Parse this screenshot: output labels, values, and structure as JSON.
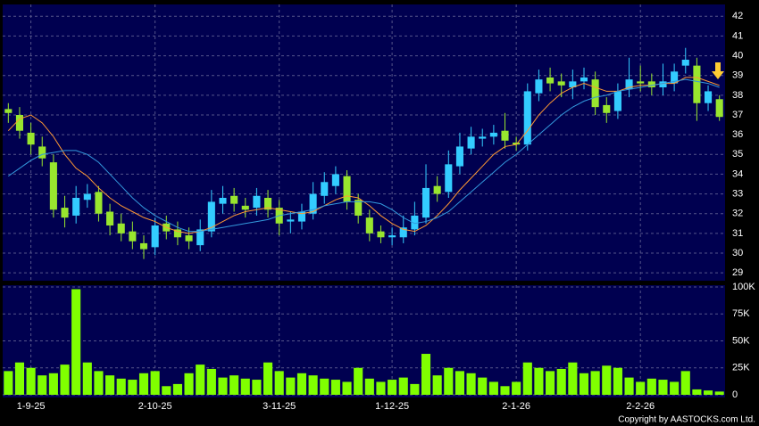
{
  "chart_data": [
    {
      "type": "candlestick",
      "up_color": "#33ccff",
      "down_color": "#99e62e",
      "open": [
        37.3,
        37.0,
        36.1,
        35.4,
        34.6,
        32.3,
        31.9,
        32.7,
        33.1,
        32.1,
        31.5,
        31.1,
        30.5,
        30.3,
        31.5,
        31.2,
        30.9,
        30.4,
        31.1,
        32.5,
        32.9,
        32.4,
        32.3,
        32.8,
        32.3,
        31.6,
        31.6,
        32.0,
        32.9,
        33.4,
        33.9,
        32.7,
        31.8,
        31.1,
        30.8,
        30.8,
        31.2,
        31.8,
        33.4,
        33.1,
        34.4,
        35.3,
        35.8,
        35.9,
        36.2,
        35.6,
        35.5,
        38.1,
        38.9,
        38.7,
        38.4,
        38.7,
        38.8,
        37.5,
        37.2,
        38.3,
        38.7,
        38.7,
        38.4,
        38.6,
        39.5,
        39.5,
        37.6,
        37.8
      ],
      "high": [
        37.6,
        37.4,
        36.6,
        35.9,
        35.0,
        32.9,
        33.4,
        33.5,
        33.4,
        32.5,
        32.0,
        31.6,
        30.9,
        31.8,
        31.9,
        31.6,
        31.3,
        31.7,
        33.2,
        33.4,
        33.3,
        32.8,
        33.3,
        33.2,
        32.7,
        32.1,
        32.5,
        33.6,
        34.1,
        34.4,
        34.2,
        33.0,
        32.2,
        31.4,
        31.3,
        31.9,
        32.6,
        34.5,
        33.9,
        35.2,
        36.1,
        36.4,
        36.3,
        36.5,
        37.1,
        35.9,
        38.6,
        39.3,
        39.4,
        39.1,
        39.3,
        39.4,
        39.2,
        37.9,
        38.6,
        39.9,
        39.5,
        39.1,
        39.6,
        39.6,
        40.4,
        39.9,
        38.5,
        38.0
      ],
      "low": [
        36.6,
        35.8,
        35.0,
        34.4,
        31.8,
        31.3,
        31.5,
        32.3,
        31.6,
        30.9,
        30.6,
        30.2,
        29.7,
        29.9,
        30.7,
        30.4,
        30.2,
        30.1,
        30.8,
        32.0,
        32.1,
        31.8,
        31.9,
        31.8,
        30.9,
        31.0,
        31.2,
        31.7,
        32.5,
        33.0,
        32.2,
        31.5,
        30.6,
        30.5,
        30.4,
        30.5,
        30.9,
        31.5,
        32.6,
        32.8,
        34.0,
        35.0,
        35.4,
        35.5,
        35.3,
        35.2,
        35.2,
        37.7,
        38.2,
        37.9,
        37.8,
        38.3,
        37.0,
        36.6,
        36.8,
        37.9,
        38.2,
        38.0,
        38.0,
        38.2,
        39.1,
        36.7,
        37.2,
        36.7
      ],
      "close": [
        37.1,
        36.2,
        35.5,
        34.8,
        32.2,
        31.8,
        32.8,
        33.0,
        32.0,
        31.4,
        31.0,
        30.6,
        30.2,
        31.4,
        31.1,
        30.8,
        30.6,
        31.2,
        32.6,
        32.8,
        32.5,
        32.2,
        32.9,
        32.2,
        31.5,
        31.7,
        32.1,
        33.0,
        33.6,
        34.0,
        32.6,
        31.9,
        31.0,
        30.8,
        30.9,
        31.3,
        31.9,
        33.3,
        33.0,
        34.5,
        35.4,
        35.9,
        35.9,
        36.1,
        35.7,
        35.5,
        38.2,
        38.8,
        38.6,
        38.5,
        38.7,
        38.9,
        37.4,
        37.1,
        38.2,
        38.8,
        38.6,
        38.4,
        38.7,
        39.2,
        39.8,
        37.6,
        38.2,
        36.9
      ],
      "series": [
        {
          "color": "#ff9933",
          "values": [
            36.2,
            36.8,
            37.0,
            36.6,
            35.9,
            35.0,
            34.3,
            33.9,
            33.3,
            32.8,
            32.4,
            32.1,
            31.8,
            31.6,
            31.3,
            31.1,
            31.0,
            31.1,
            31.3,
            31.6,
            31.9,
            32.1,
            32.2,
            32.3,
            32.2,
            32.1,
            32.0,
            32.1,
            32.4,
            32.7,
            32.9,
            32.8,
            32.4,
            31.9,
            31.5,
            31.2,
            31.1,
            31.4,
            31.9,
            32.5,
            33.2,
            33.8,
            34.4,
            35.0,
            35.4,
            35.5,
            36.2,
            37.0,
            37.6,
            38.1,
            38.4,
            38.6,
            38.4,
            38.2,
            38.2,
            38.4,
            38.5,
            38.5,
            38.6,
            38.6,
            38.9,
            38.9,
            38.7,
            38.5
          ]
        },
        {
          "color": "#3399dd",
          "values": [
            33.9,
            34.3,
            34.7,
            35.0,
            35.1,
            35.2,
            35.2,
            35.0,
            34.6,
            34.0,
            33.4,
            32.8,
            32.3,
            31.9,
            31.6,
            31.3,
            31.1,
            31.1,
            31.2,
            31.3,
            31.4,
            31.5,
            31.6,
            31.7,
            31.9,
            32.0,
            32.1,
            32.2,
            32.4,
            32.5,
            32.6,
            32.6,
            32.6,
            32.5,
            32.2,
            31.8,
            31.5,
            31.6,
            31.8,
            32.1,
            32.6,
            33.1,
            33.6,
            34.1,
            34.6,
            35.0,
            35.5,
            36.0,
            36.5,
            37.0,
            37.4,
            37.7,
            37.9,
            38.0,
            38.2,
            38.3,
            38.4,
            38.5,
            38.6,
            38.7,
            38.8,
            38.7,
            38.6,
            38.4
          ]
        }
      ],
      "ylim": [
        28.6,
        42.6
      ],
      "yticks": [
        29,
        30,
        31,
        32,
        33,
        34,
        35,
        36,
        37,
        38,
        39,
        40,
        41,
        42
      ],
      "grid": true
    },
    {
      "type": "bar",
      "color": "#80ff00",
      "categories": [
        null,
        null,
        "1-9-25",
        null,
        null,
        null,
        null,
        null,
        null,
        null,
        null,
        null,
        null,
        "2-10-25",
        null,
        null,
        null,
        null,
        null,
        null,
        null,
        null,
        null,
        null,
        "3-11-25",
        null,
        null,
        null,
        null,
        null,
        null,
        null,
        null,
        null,
        "1-12-25",
        null,
        null,
        null,
        null,
        null,
        null,
        null,
        null,
        null,
        null,
        "2-1-26",
        null,
        null,
        null,
        null,
        null,
        null,
        null,
        null,
        null,
        null,
        "2-2-26",
        null,
        null,
        null,
        null,
        null,
        null,
        null
      ],
      "values": [
        22000,
        30000,
        25000,
        18000,
        20000,
        28000,
        98000,
        30000,
        22000,
        18000,
        15000,
        14000,
        20000,
        22000,
        8000,
        10000,
        20000,
        28000,
        24000,
        16000,
        18000,
        15000,
        14000,
        30000,
        22000,
        16000,
        20000,
        18000,
        15000,
        14000,
        12000,
        25000,
        15000,
        12000,
        14000,
        16000,
        10000,
        38000,
        18000,
        25000,
        22000,
        20000,
        16000,
        12000,
        8000,
        12000,
        30000,
        25000,
        22000,
        24000,
        30000,
        20000,
        22000,
        27000,
        25000,
        16000,
        12000,
        15000,
        14000,
        12000,
        22000,
        5000,
        4000,
        3000
      ],
      "ylim": [
        -2500,
        101700
      ],
      "yticks": [
        0,
        {
          "value": 25000,
          "label": "25K"
        },
        {
          "value": 50000,
          "label": "50K"
        },
        {
          "value": 75000,
          "label": "75K"
        },
        {
          "value": 100000,
          "label": "100K"
        }
      ],
      "grid": true
    }
  ],
  "footer": "Copyright by AASTOCKS.com Ltd."
}
